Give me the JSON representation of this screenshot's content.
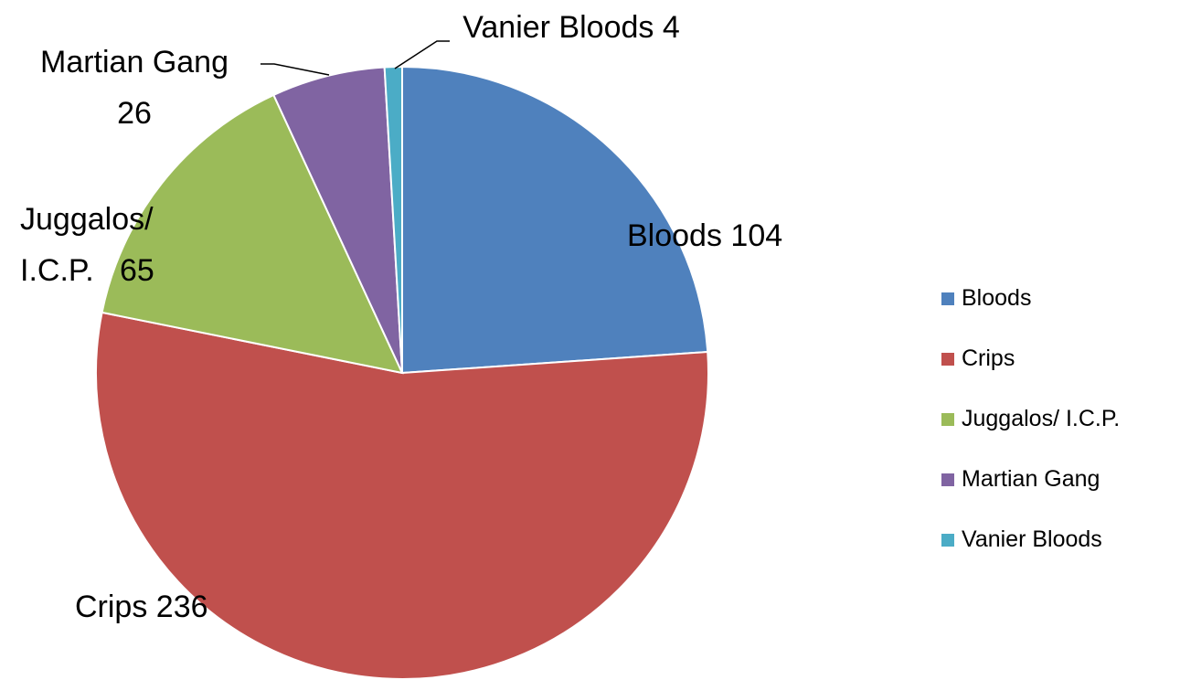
{
  "chart_data": {
    "type": "pie",
    "categories": [
      "Bloods",
      "Crips",
      "Juggalos/ I.C.P.",
      "Martian Gang",
      "Vanier Bloods"
    ],
    "values": [
      104,
      236,
      65,
      26,
      4
    ],
    "colors": [
      "#4f81bd",
      "#c0504d",
      "#9bbb59",
      "#8064a2",
      "#4bacc6"
    ],
    "legend": "right"
  }
}
